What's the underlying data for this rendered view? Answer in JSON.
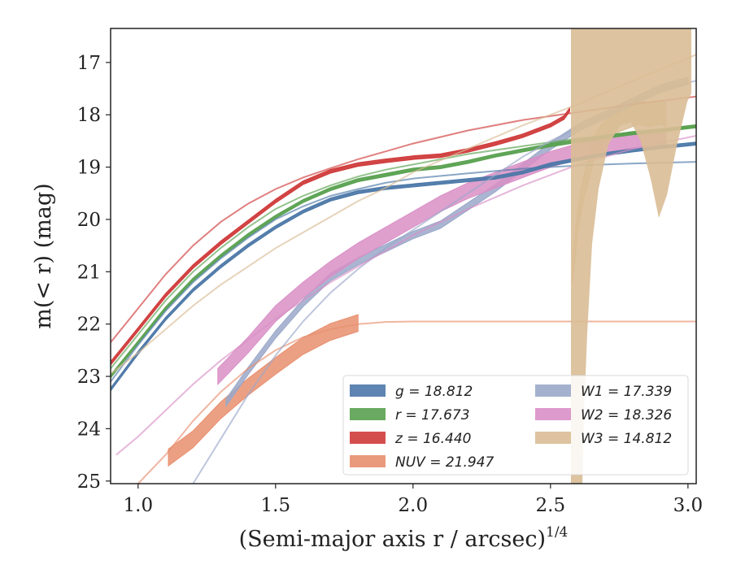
{
  "chart_data": {
    "type": "line",
    "title": "",
    "xlabel": "(Semi-major axis r / arcsec)",
    "xlabel_sup": "1/4",
    "ylabel": "m(< r) (mag)",
    "xlim": [
      0.9,
      3.03
    ],
    "ylim": [
      25.05,
      16.35
    ],
    "y_inverted": true,
    "grid": false,
    "legend_position": "lower-right",
    "x_ticks": [
      "1.0",
      "1.5",
      "2.0",
      "2.5",
      "3.0"
    ],
    "y_ticks": [
      "17",
      "18",
      "19",
      "20",
      "21",
      "22",
      "23",
      "24",
      "25"
    ],
    "legend": [
      {
        "name": "g",
        "label": "g = 18.812",
        "color": "#4c78a8"
      },
      {
        "name": "r",
        "label": "r = 17.673",
        "color": "#59a14f"
      },
      {
        "name": "z",
        "label": "z = 16.440",
        "color": "#d03b3b"
      },
      {
        "name": "NUV",
        "label": "NUV = 21.947",
        "color": "#e88f6e"
      },
      {
        "name": "W1",
        "label": "W1 = 17.339",
        "color": "#9aa8c9"
      },
      {
        "name": "W2",
        "label": "W2 = 18.326",
        "color": "#d98fc6"
      },
      {
        "name": "W3",
        "label": "W3 = 14.812",
        "color": "#d9bc95"
      }
    ],
    "series": [
      {
        "name": "g",
        "kind": "band",
        "color": "#4c78a8",
        "x": [
          0.9,
          1.0,
          1.1,
          1.2,
          1.3,
          1.4,
          1.5,
          1.6,
          1.7,
          1.8,
          1.9,
          2.0,
          2.1,
          2.2,
          2.3,
          2.4,
          2.5,
          2.6,
          2.7,
          2.8,
          2.9,
          3.03
        ],
        "y": [
          23.25,
          22.55,
          21.9,
          21.35,
          20.9,
          20.5,
          20.15,
          19.85,
          19.62,
          19.48,
          19.4,
          19.35,
          19.3,
          19.25,
          19.2,
          19.1,
          18.95,
          18.85,
          18.75,
          18.68,
          18.62,
          18.55
        ],
        "width": 0.06
      },
      {
        "name": "r",
        "kind": "band",
        "color": "#59a14f",
        "x": [
          0.9,
          1.0,
          1.1,
          1.2,
          1.3,
          1.4,
          1.5,
          1.6,
          1.7,
          1.8,
          1.9,
          2.0,
          2.1,
          2.2,
          2.3,
          2.4,
          2.5,
          2.6,
          2.7,
          2.8,
          2.9,
          3.03
        ],
        "y": [
          23.0,
          22.35,
          21.7,
          21.15,
          20.7,
          20.3,
          19.95,
          19.65,
          19.42,
          19.25,
          19.15,
          19.05,
          19.0,
          18.9,
          18.78,
          18.68,
          18.58,
          18.5,
          18.42,
          18.35,
          18.3,
          18.22
        ],
        "width": 0.06
      },
      {
        "name": "z",
        "kind": "band",
        "color": "#d03b3b",
        "x": [
          0.9,
          1.0,
          1.1,
          1.2,
          1.3,
          1.4,
          1.5,
          1.6,
          1.7,
          1.8,
          1.9,
          2.0,
          2.1,
          2.2,
          2.3,
          2.4,
          2.5,
          2.55,
          2.57
        ],
        "y": [
          22.75,
          22.1,
          21.45,
          20.9,
          20.45,
          20.05,
          19.65,
          19.3,
          19.08,
          18.95,
          18.88,
          18.82,
          18.78,
          18.68,
          18.55,
          18.4,
          18.2,
          18.05,
          17.9
        ],
        "width": 0.07
      },
      {
        "name": "NUV",
        "kind": "band",
        "color": "#e88f6e",
        "x": [
          1.11,
          1.2,
          1.3,
          1.4,
          1.5,
          1.6,
          1.7,
          1.8
        ],
        "y": [
          24.55,
          24.2,
          23.65,
          23.2,
          22.8,
          22.42,
          22.15,
          21.98
        ],
        "width": 0.32
      },
      {
        "name": "W1",
        "kind": "band",
        "color": "#9aa8c9",
        "x": [
          1.32,
          1.4,
          1.5,
          1.6,
          1.7,
          1.8,
          1.9,
          2.0,
          2.1,
          2.2,
          2.3,
          2.4,
          2.5,
          2.6,
          2.7,
          2.8,
          2.9,
          3.0
        ],
        "y": [
          23.5,
          22.9,
          22.2,
          21.6,
          21.1,
          20.8,
          20.55,
          20.3,
          20.1,
          19.75,
          19.4,
          19.0,
          18.6,
          18.25,
          18.0,
          17.75,
          17.5,
          17.35
        ],
        "width": 0.14
      },
      {
        "name": "W2",
        "kind": "band",
        "color": "#d98fc6",
        "x": [
          1.29,
          1.4,
          1.5,
          1.6,
          1.7,
          1.8,
          1.9,
          2.0,
          2.1,
          2.2,
          2.3,
          2.4,
          2.5,
          2.6,
          2.7,
          2.8,
          2.9,
          2.92
        ],
        "y": [
          23.0,
          22.4,
          21.8,
          21.35,
          20.95,
          20.6,
          20.3,
          20.0,
          19.7,
          19.45,
          19.25,
          19.05,
          18.85,
          18.7,
          18.58,
          18.48,
          18.42,
          18.5
        ],
        "width": 0.3
      },
      {
        "name": "W3",
        "kind": "band",
        "color": "#d9bc95",
        "x": [
          2.58,
          2.6,
          2.62,
          2.64,
          2.66,
          2.7,
          2.75,
          2.8,
          2.82,
          2.86,
          2.9,
          2.92
        ],
        "y": [
          21.0,
          20.0,
          19.4,
          19.0,
          18.6,
          18.3,
          18.1,
          18.0,
          17.95,
          18.0,
          17.95,
          18.0
        ],
        "width": 0.45
      },
      {
        "name": "g model",
        "kind": "line",
        "color": "#4c78a8",
        "x": [
          0.9,
          1.0,
          1.1,
          1.2,
          1.3,
          1.4,
          1.5,
          1.6,
          1.7,
          1.8,
          1.9,
          2.0,
          2.2,
          2.4,
          2.6,
          2.8,
          3.03
        ],
        "y": [
          23.1,
          22.4,
          21.75,
          21.2,
          20.75,
          20.35,
          20.0,
          19.75,
          19.55,
          19.42,
          19.3,
          19.22,
          19.12,
          19.03,
          18.97,
          18.93,
          18.9
        ]
      },
      {
        "name": "r model",
        "kind": "line",
        "color": "#59a14f",
        "x": [
          0.9,
          1.0,
          1.1,
          1.2,
          1.3,
          1.4,
          1.5,
          1.6,
          1.7,
          1.8,
          1.9,
          2.0,
          2.2,
          2.4,
          2.6,
          2.8,
          3.03
        ],
        "y": [
          22.85,
          22.2,
          21.55,
          21.0,
          20.55,
          20.15,
          19.8,
          19.55,
          19.35,
          19.18,
          19.05,
          18.95,
          18.75,
          18.6,
          18.45,
          18.35,
          18.22
        ]
      },
      {
        "name": "z model",
        "kind": "line",
        "color": "#d03b3b",
        "x": [
          0.9,
          1.0,
          1.1,
          1.2,
          1.3,
          1.4,
          1.5,
          1.6,
          1.7,
          1.8,
          1.9,
          2.0,
          2.2,
          2.4,
          2.6,
          2.8,
          3.03
        ],
        "y": [
          22.35,
          21.7,
          21.05,
          20.5,
          20.05,
          19.7,
          19.42,
          19.2,
          19.02,
          18.85,
          18.7,
          18.55,
          18.3,
          18.1,
          17.95,
          17.8,
          17.65
        ]
      },
      {
        "name": "NUV model",
        "kind": "line",
        "color": "#e88f6e",
        "x": [
          1.0,
          1.1,
          1.2,
          1.3,
          1.4,
          1.5,
          1.6,
          1.7,
          1.8,
          1.9,
          2.0,
          2.2,
          2.5,
          3.03
        ],
        "y": [
          25.05,
          24.5,
          23.85,
          23.3,
          22.85,
          22.5,
          22.25,
          22.1,
          22.0,
          21.96,
          21.95,
          21.95,
          21.95,
          21.95
        ]
      },
      {
        "name": "W1 model",
        "kind": "line",
        "color": "#9aa8c9",
        "x": [
          1.2,
          1.3,
          1.4,
          1.5,
          1.6,
          1.7,
          1.8,
          1.9,
          2.0,
          2.1,
          2.2,
          2.3,
          2.4,
          2.5,
          2.6,
          2.7,
          2.8,
          2.9,
          3.03
        ],
        "y": [
          25.05,
          24.2,
          23.35,
          22.6,
          21.95,
          21.4,
          20.95,
          20.55,
          20.2,
          19.85,
          19.5,
          19.15,
          18.8,
          18.5,
          18.25,
          18.0,
          17.75,
          17.5,
          17.35
        ]
      },
      {
        "name": "W2 model",
        "kind": "line",
        "color": "#d98fc6",
        "x": [
          0.92,
          1.0,
          1.1,
          1.2,
          1.3,
          1.4,
          1.5,
          1.6,
          1.7,
          1.8,
          1.9,
          2.0,
          2.2,
          2.4,
          2.6,
          2.8,
          3.03
        ],
        "y": [
          24.5,
          24.15,
          23.65,
          23.15,
          22.7,
          22.3,
          21.9,
          21.55,
          21.2,
          20.9,
          20.6,
          20.3,
          19.8,
          19.35,
          18.95,
          18.65,
          18.4
        ]
      },
      {
        "name": "W3 model",
        "kind": "line",
        "color": "#d9bc95",
        "x": [
          0.9,
          1.0,
          1.1,
          1.2,
          1.3,
          1.4,
          1.5,
          1.6,
          1.7,
          1.8,
          1.9,
          2.0,
          2.2,
          2.4,
          2.6,
          2.8,
          3.03
        ],
        "y": [
          22.95,
          22.55,
          22.1,
          21.65,
          21.25,
          20.9,
          20.55,
          20.25,
          19.95,
          19.65,
          19.4,
          19.1,
          18.65,
          18.2,
          17.8,
          17.35,
          16.85
        ]
      }
    ]
  }
}
